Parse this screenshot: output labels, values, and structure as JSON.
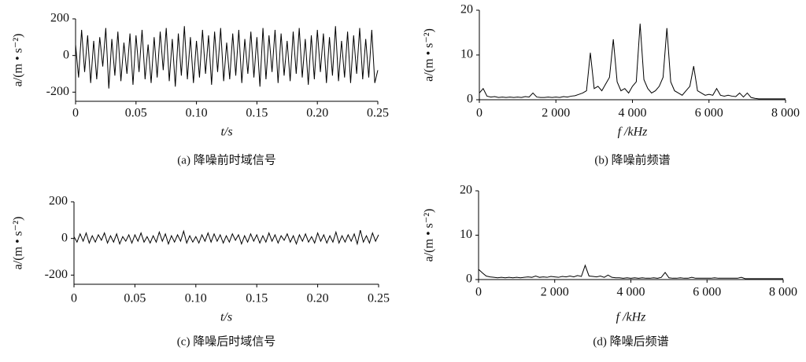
{
  "chart_data": [
    {
      "type": "line",
      "caption": "(a)  降噪前时域信号",
      "xlabel": "t/s",
      "ylabel": "a/(m • s⁻²)",
      "color": "#000000",
      "xlim": [
        0,
        0.25
      ],
      "ylim": [
        -250,
        200
      ],
      "xticks": [
        0,
        0.05,
        {
          "value": 0.1,
          "label": "0.10"
        },
        0.15,
        {
          "value": 0.2,
          "label": "0.20"
        },
        0.25
      ],
      "yticks": [
        -200,
        0,
        200
      ],
      "x": [
        0,
        0.0025,
        0.005,
        0.0075,
        0.01,
        0.0125,
        0.015,
        0.0175,
        0.02,
        0.0225,
        0.025,
        0.0275,
        0.03,
        0.0325,
        0.035,
        0.0375,
        0.04,
        0.0425,
        0.045,
        0.0475,
        0.05,
        0.0525,
        0.055,
        0.0575,
        0.06,
        0.0625,
        0.065,
        0.0675,
        0.07,
        0.0725,
        0.075,
        0.0775,
        0.08,
        0.0825,
        0.085,
        0.0875,
        0.09,
        0.0925,
        0.095,
        0.0975,
        0.1,
        0.1025,
        0.105,
        0.1075,
        0.11,
        0.1125,
        0.115,
        0.1175,
        0.12,
        0.1225,
        0.125,
        0.1275,
        0.13,
        0.1325,
        0.135,
        0.1375,
        0.14,
        0.1425,
        0.145,
        0.1475,
        0.15,
        0.1525,
        0.155,
        0.1575,
        0.16,
        0.1625,
        0.165,
        0.1675,
        0.17,
        0.1725,
        0.175,
        0.1775,
        0.18,
        0.1825,
        0.185,
        0.1875,
        0.19,
        0.1925,
        0.195,
        0.1975,
        0.2,
        0.2025,
        0.205,
        0.2075,
        0.21,
        0.2125,
        0.215,
        0.2175,
        0.22,
        0.2225,
        0.225,
        0.2275,
        0.23,
        0.2325,
        0.235,
        0.2375,
        0.24,
        0.2425,
        0.245,
        0.2475,
        0.25
      ],
      "values": [
        60,
        -120,
        140,
        -90,
        110,
        -150,
        80,
        -130,
        100,
        -60,
        150,
        -180,
        90,
        -110,
        130,
        -140,
        70,
        -100,
        120,
        -160,
        110,
        -90,
        140,
        -130,
        60,
        -150,
        100,
        -120,
        130,
        -80,
        150,
        -140,
        90,
        -170,
        120,
        -110,
        160,
        -130,
        100,
        -150,
        80,
        -120,
        140,
        -100,
        110,
        -160,
        130,
        -90,
        150,
        -140,
        70,
        -130,
        120,
        -110,
        140,
        -150,
        90,
        -100,
        130,
        -120,
        100,
        -170,
        150,
        -130,
        110,
        -90,
        140,
        -150,
        120,
        -110,
        80,
        -140,
        130,
        -100,
        150,
        -120,
        90,
        -160,
        110,
        -130,
        140,
        -90,
        120,
        -150,
        100,
        -110,
        160,
        -140,
        80,
        -120,
        130,
        -150,
        110,
        -100,
        150,
        -130,
        90,
        -120,
        140,
        -150,
        -80
      ]
    },
    {
      "type": "line",
      "caption": "(b)  降噪前频谱",
      "xlabel": "f /kHz",
      "ylabel": "a/(m • s⁻²)",
      "color": "#000000",
      "xlim": [
        0,
        8000
      ],
      "ylim": [
        0,
        20
      ],
      "xticks": [
        0,
        {
          "value": 2000,
          "label": "2 000"
        },
        {
          "value": 4000,
          "label": "4 000"
        },
        {
          "value": 6000,
          "label": "6 000"
        },
        {
          "value": 8000,
          "label": "8 000"
        }
      ],
      "yticks": [
        0,
        10,
        20
      ],
      "x": [
        0,
        100,
        200,
        300,
        400,
        500,
        600,
        700,
        800,
        900,
        1000,
        1100,
        1200,
        1300,
        1400,
        1500,
        1600,
        1700,
        1800,
        1900,
        2000,
        2100,
        2200,
        2300,
        2400,
        2500,
        2600,
        2700,
        2800,
        2900,
        3000,
        3100,
        3200,
        3300,
        3400,
        3500,
        3600,
        3700,
        3800,
        3900,
        4000,
        4100,
        4200,
        4300,
        4400,
        4500,
        4600,
        4700,
        4800,
        4900,
        5000,
        5100,
        5200,
        5300,
        5400,
        5500,
        5600,
        5700,
        5800,
        5900,
        6000,
        6100,
        6200,
        6300,
        6400,
        6500,
        6600,
        6700,
        6800,
        6900,
        7000,
        7100,
        7200,
        7300,
        7400,
        7500,
        7600,
        7700,
        7800,
        7900,
        8000
      ],
      "values": [
        1.5,
        2.5,
        0.8,
        0.6,
        0.7,
        0.5,
        0.6,
        0.5,
        0.6,
        0.5,
        0.6,
        0.5,
        0.7,
        0.6,
        1.5,
        0.6,
        0.5,
        0.5,
        0.6,
        0.5,
        0.6,
        0.5,
        0.7,
        0.6,
        0.8,
        0.9,
        1.2,
        1.5,
        2,
        10.5,
        2.5,
        3,
        2,
        3.5,
        5,
        13.5,
        4,
        2,
        2.5,
        1.5,
        3,
        4,
        17,
        4.5,
        2.5,
        1.5,
        2,
        3,
        5,
        16,
        4,
        2,
        1.5,
        1,
        2,
        3,
        7.5,
        2,
        1.5,
        1,
        1.2,
        1,
        2.5,
        1,
        0.8,
        1,
        0.8,
        0.7,
        1.5,
        0.6,
        1.5,
        0.5,
        0.3,
        0.2,
        0.2,
        0.2,
        0.2,
        0.2,
        0.2,
        0.2,
        0.2
      ]
    },
    {
      "type": "line",
      "caption": "(c)  降噪后时域信号",
      "xlabel": "t/s",
      "ylabel": "a/(m • s⁻²)",
      "color": "#000000",
      "xlim": [
        0,
        0.25
      ],
      "ylim": [
        -250,
        200
      ],
      "xticks": [
        0,
        0.05,
        {
          "value": 0.1,
          "label": "0.10"
        },
        0.15,
        {
          "value": 0.2,
          "label": "0.20"
        },
        0.25
      ],
      "yticks": [
        -200,
        0,
        200
      ],
      "x": [
        0,
        0.0025,
        0.005,
        0.0075,
        0.01,
        0.0125,
        0.015,
        0.0175,
        0.02,
        0.0225,
        0.025,
        0.0275,
        0.03,
        0.0325,
        0.035,
        0.0375,
        0.04,
        0.0425,
        0.045,
        0.0475,
        0.05,
        0.0525,
        0.055,
        0.0575,
        0.06,
        0.0625,
        0.065,
        0.0675,
        0.07,
        0.0725,
        0.075,
        0.0775,
        0.08,
        0.0825,
        0.085,
        0.0875,
        0.09,
        0.0925,
        0.095,
        0.0975,
        0.1,
        0.1025,
        0.105,
        0.1075,
        0.11,
        0.1125,
        0.115,
        0.1175,
        0.12,
        0.1225,
        0.125,
        0.1275,
        0.13,
        0.1325,
        0.135,
        0.1375,
        0.14,
        0.1425,
        0.145,
        0.1475,
        0.15,
        0.1525,
        0.155,
        0.1575,
        0.16,
        0.1625,
        0.165,
        0.1675,
        0.17,
        0.1725,
        0.175,
        0.1775,
        0.18,
        0.1825,
        0.185,
        0.1875,
        0.19,
        0.1925,
        0.195,
        0.1975,
        0.2,
        0.2025,
        0.205,
        0.2075,
        0.21,
        0.2125,
        0.215,
        0.2175,
        0.22,
        0.2225,
        0.225,
        0.2275,
        0.23,
        0.2325,
        0.235,
        0.2375,
        0.24,
        0.2425,
        0.245,
        0.2475,
        0.25
      ],
      "values": [
        10,
        -20,
        25,
        -15,
        30,
        -25,
        15,
        -20,
        20,
        -10,
        30,
        -25,
        15,
        -20,
        25,
        -30,
        10,
        -15,
        20,
        -25,
        20,
        -15,
        30,
        -20,
        10,
        -25,
        15,
        -20,
        35,
        -15,
        25,
        -30,
        15,
        -20,
        20,
        -15,
        40,
        -25,
        15,
        -20,
        10,
        -25,
        20,
        -15,
        30,
        -20,
        25,
        -15,
        20,
        -25,
        15,
        -20,
        25,
        -10,
        20,
        -30,
        15,
        -20,
        25,
        -15,
        20,
        -25,
        15,
        -20,
        30,
        -15,
        20,
        -25,
        15,
        -10,
        25,
        -20,
        15,
        -30,
        20,
        -15,
        25,
        -20,
        10,
        -25,
        30,
        -15,
        20,
        -25,
        15,
        -20,
        35,
        -25,
        15,
        -20,
        20,
        -15,
        25,
        -30,
        45,
        -20,
        15,
        -25,
        30,
        -15,
        20
      ]
    },
    {
      "type": "line",
      "caption": "(d)  降噪后频谱",
      "xlabel": "f /kHz",
      "ylabel": "a/(m • s⁻²)",
      "color": "#000000",
      "xlim": [
        0,
        8000
      ],
      "ylim": [
        0,
        20
      ],
      "xticks": [
        0,
        {
          "value": 2000,
          "label": "2 000"
        },
        {
          "value": 4000,
          "label": "4 000"
        },
        {
          "value": 6000,
          "label": "6 000"
        },
        {
          "value": 8000,
          "label": "8 000"
        }
      ],
      "yticks": [
        0,
        10,
        20
      ],
      "x": [
        0,
        100,
        200,
        300,
        400,
        500,
        600,
        700,
        800,
        900,
        1000,
        1100,
        1200,
        1300,
        1400,
        1500,
        1600,
        1700,
        1800,
        1900,
        2000,
        2100,
        2200,
        2300,
        2400,
        2500,
        2600,
        2700,
        2800,
        2900,
        3000,
        3100,
        3200,
        3300,
        3400,
        3500,
        3600,
        3700,
        3800,
        3900,
        4000,
        4100,
        4200,
        4300,
        4400,
        4500,
        4600,
        4700,
        4800,
        4900,
        5000,
        5100,
        5200,
        5300,
        5400,
        5500,
        5600,
        5700,
        5800,
        5900,
        6000,
        6100,
        6200,
        6300,
        6400,
        6500,
        6600,
        6700,
        6800,
        6900,
        7000,
        7100,
        7200,
        7300,
        7400,
        7500,
        7600,
        7700,
        7800,
        7900,
        8000
      ],
      "values": [
        2.3,
        1.5,
        0.8,
        0.6,
        0.5,
        0.4,
        0.5,
        0.4,
        0.5,
        0.4,
        0.5,
        0.4,
        0.5,
        0.6,
        0.5,
        0.8,
        0.5,
        0.6,
        0.5,
        0.7,
        0.6,
        0.5,
        0.7,
        0.6,
        0.8,
        0.6,
        0.9,
        0.7,
        3.2,
        0.8,
        0.7,
        0.6,
        0.8,
        0.5,
        1,
        0.5,
        0.4,
        0.4,
        0.3,
        0.4,
        0.3,
        0.4,
        0.3,
        0.4,
        0.3,
        0.3,
        0.4,
        0.3,
        0.5,
        1.6,
        0.4,
        0.3,
        0.3,
        0.4,
        0.3,
        0.3,
        0.5,
        0.3,
        0.3,
        0.3,
        0.3,
        0.3,
        0.4,
        0.3,
        0.3,
        0.3,
        0.3,
        0.3,
        0.3,
        0.5,
        0.2,
        0.2,
        0.2,
        0.2,
        0.2,
        0.2,
        0.2,
        0.2,
        0.2,
        0.2,
        0.2
      ]
    }
  ]
}
